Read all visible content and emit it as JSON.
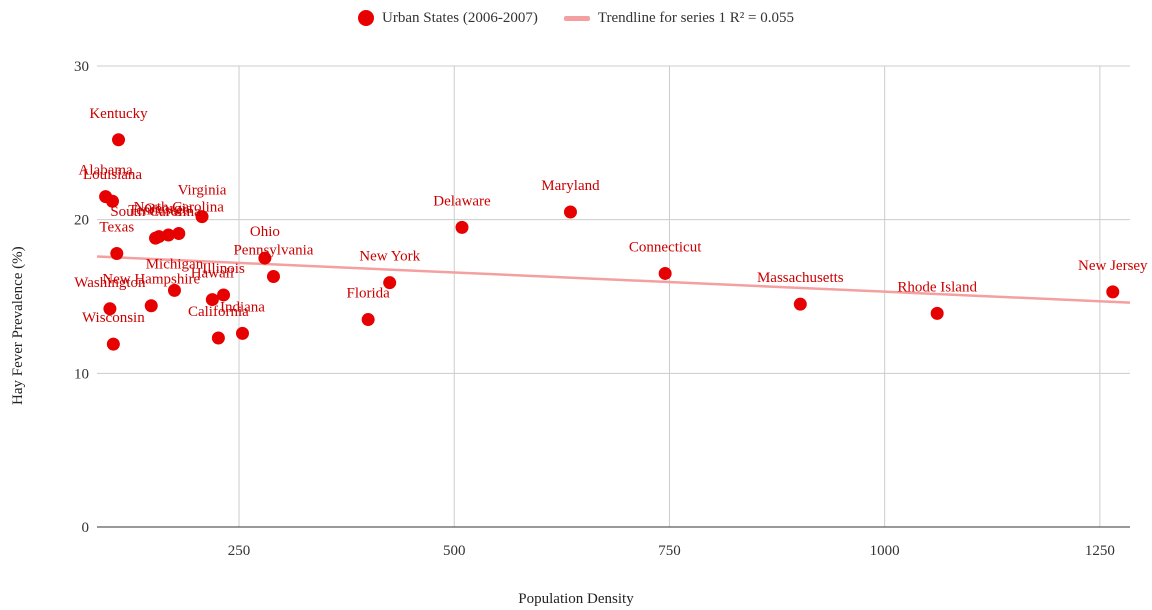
{
  "chart_data": {
    "type": "scatter",
    "title": "",
    "xlabel": "Population Density",
    "ylabel": "Hay Fever Prevalence (%)",
    "xlim": [
      85,
      1285
    ],
    "ylim": [
      0,
      30
    ],
    "x_ticks": [
      "250",
      "500",
      "750",
      "1000",
      "1250"
    ],
    "x_tick_values": [
      250,
      500,
      750,
      1000,
      1250
    ],
    "y_ticks": [
      "0",
      "10",
      "20",
      "30"
    ],
    "y_tick_values": [
      0,
      10,
      20,
      30
    ],
    "grid": true,
    "legend_position": "top-center",
    "colors": {
      "points": "#e60000",
      "labels": "#cc0000",
      "trendline": "#f4a0a0",
      "grid": "#cccccc"
    },
    "series": [
      {
        "name": "Urban States (2006-2007)",
        "points": [
          {
            "label": "Kentucky",
            "x": 110,
            "y": 25.2
          },
          {
            "label": "Alabama",
            "x": 95,
            "y": 21.5
          },
          {
            "label": "Louisiana",
            "x": 103,
            "y": 21.2
          },
          {
            "label": "Texas",
            "x": 108,
            "y": 17.8
          },
          {
            "label": "South Carolina",
            "x": 153,
            "y": 18.8
          },
          {
            "label": "Tennessee",
            "x": 157,
            "y": 18.9
          },
          {
            "label": "Georgia",
            "x": 168,
            "y": 19.0
          },
          {
            "label": "North Carolina",
            "x": 180,
            "y": 19.1
          },
          {
            "label": "Virginia",
            "x": 207,
            "y": 20.2
          },
          {
            "label": "Michigan",
            "x": 175,
            "y": 15.4
          },
          {
            "label": "Illinois",
            "x": 232,
            "y": 15.1
          },
          {
            "label": "Washington",
            "x": 100,
            "y": 14.2
          },
          {
            "label": "New Hampshire",
            "x": 148,
            "y": 14.4
          },
          {
            "label": "Hawaii",
            "x": 219,
            "y": 14.8
          },
          {
            "label": "Wisconsin",
            "x": 104,
            "y": 11.9
          },
          {
            "label": "California",
            "x": 226,
            "y": 12.3
          },
          {
            "label": "Indiana",
            "x": 254,
            "y": 12.6
          },
          {
            "label": "Pennsylvania",
            "x": 290,
            "y": 16.3
          },
          {
            "label": "Ohio",
            "x": 280,
            "y": 17.5
          },
          {
            "label": "Florida",
            "x": 400,
            "y": 13.5
          },
          {
            "label": "New York",
            "x": 425,
            "y": 15.9
          },
          {
            "label": "Delaware",
            "x": 509,
            "y": 19.5
          },
          {
            "label": "Maryland",
            "x": 635,
            "y": 20.5
          },
          {
            "label": "Connecticut",
            "x": 745,
            "y": 16.5
          },
          {
            "label": "Massachusetts",
            "x": 902,
            "y": 14.5
          },
          {
            "label": "Rhode Island",
            "x": 1061,
            "y": 13.9
          },
          {
            "label": "New Jersey",
            "x": 1265,
            "y": 15.3
          }
        ]
      },
      {
        "name": "Trendline for series 1 R² = 0.055",
        "trendline": {
          "x": [
            85,
            1285
          ],
          "y": [
            17.6,
            14.6
          ]
        }
      }
    ]
  }
}
